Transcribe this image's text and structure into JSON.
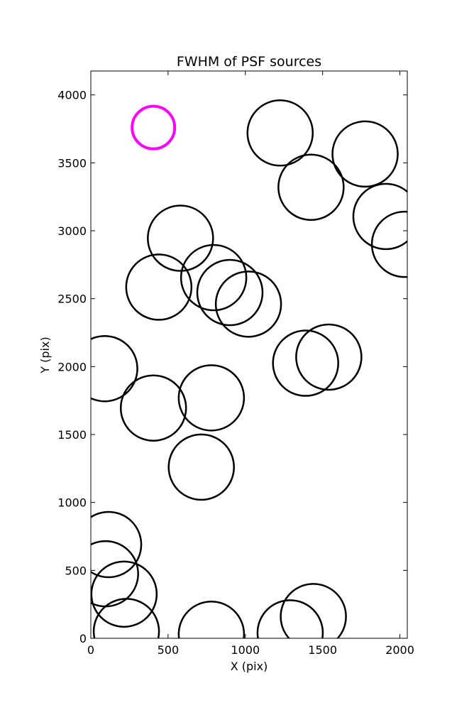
{
  "chart_data": {
    "type": "scatter",
    "title": "FWHM of PSF sources",
    "xlabel": "X (pix)",
    "ylabel": "Y (pix)",
    "xlim": [
      0,
      2048
    ],
    "ylim": [
      0,
      4176
    ],
    "x_ticks": [
      0,
      500,
      1000,
      1500,
      2000
    ],
    "y_ticks": [
      0,
      500,
      1000,
      1500,
      2000,
      2500,
      3000,
      3500,
      4000
    ],
    "grid": false,
    "marker": "circle-outline",
    "series": [
      {
        "color": "#000000",
        "points": [
          {
            "x": 1225,
            "y": 3720
          },
          {
            "x": 1775,
            "y": 3565
          },
          {
            "x": 1425,
            "y": 3320
          },
          {
            "x": 1910,
            "y": 3105
          },
          {
            "x": 2030,
            "y": 2900
          },
          {
            "x": 580,
            "y": 2945
          },
          {
            "x": 795,
            "y": 2655
          },
          {
            "x": 900,
            "y": 2545
          },
          {
            "x": 440,
            "y": 2585
          },
          {
            "x": 1020,
            "y": 2460
          },
          {
            "x": 90,
            "y": 1985
          },
          {
            "x": 1390,
            "y": 2025
          },
          {
            "x": 1540,
            "y": 2070
          },
          {
            "x": 405,
            "y": 1695
          },
          {
            "x": 780,
            "y": 1770
          },
          {
            "x": 715,
            "y": 1260
          },
          {
            "x": 115,
            "y": 690
          },
          {
            "x": 95,
            "y": 475
          },
          {
            "x": 215,
            "y": 325
          },
          {
            "x": 230,
            "y": 50
          },
          {
            "x": 780,
            "y": 30
          },
          {
            "x": 1290,
            "y": 40
          },
          {
            "x": 1440,
            "y": 160
          }
        ]
      },
      {
        "color": "#ff00ff",
        "points": [
          {
            "x": 405,
            "y": 3760
          }
        ]
      }
    ]
  }
}
